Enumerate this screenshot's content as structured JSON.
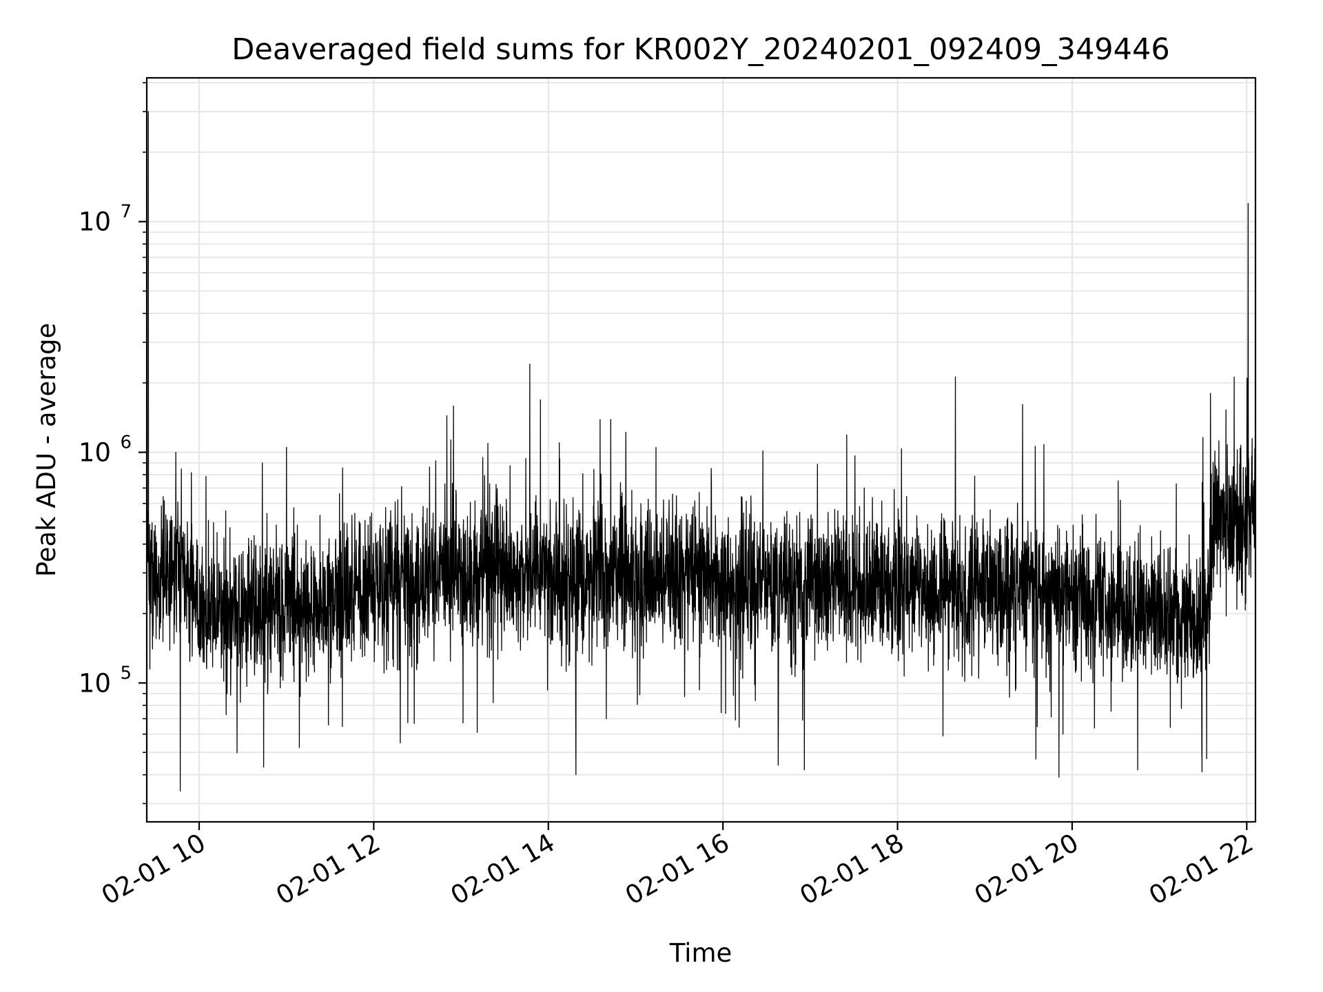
{
  "chart_data": {
    "type": "line",
    "title": "Deaveraged field sums for KR002Y_20240201_092409_349446",
    "xlabel": "Time",
    "ylabel": "Peak ADU - average",
    "yscale": "log",
    "grid": true,
    "line_color": "#000000",
    "grid_color": "#e6e6e6",
    "x_range": [
      "2024-02-01 09:24",
      "2024-02-01 22:06"
    ],
    "ylim": [
      25000,
      42000000
    ],
    "x_ticks": [
      {
        "value": "2024-02-01 10:00",
        "label": "02-01 10"
      },
      {
        "value": "2024-02-01 12:00",
        "label": "02-01 12"
      },
      {
        "value": "2024-02-01 14:00",
        "label": "02-01 14"
      },
      {
        "value": "2024-02-01 16:00",
        "label": "02-01 16"
      },
      {
        "value": "2024-02-01 18:00",
        "label": "02-01 18"
      },
      {
        "value": "2024-02-01 20:00",
        "label": "02-01 20"
      },
      {
        "value": "2024-02-01 22:00",
        "label": "02-01 22"
      }
    ],
    "y_ticks": [
      {
        "value": 100000,
        "base": "10",
        "exponent": "5"
      },
      {
        "value": 1000000,
        "base": "10",
        "exponent": "6"
      },
      {
        "value": 10000000,
        "base": "10",
        "exponent": "7"
      }
    ],
    "series": [
      {
        "n_points": 5000,
        "typical_level": [
          {
            "x": "2024-02-01 09:24",
            "y": 300000
          },
          {
            "x": "2024-02-01 09:50",
            "y": 300000
          },
          {
            "x": "2024-02-01 10:00",
            "y": 200000
          },
          {
            "x": "2024-02-01 11:00",
            "y": 220000
          },
          {
            "x": "2024-02-01 12:00",
            "y": 260000
          },
          {
            "x": "2024-02-01 13:00",
            "y": 300000
          },
          {
            "x": "2024-02-01 14:00",
            "y": 290000
          },
          {
            "x": "2024-02-01 15:00",
            "y": 300000
          },
          {
            "x": "2024-02-01 16:00",
            "y": 280000
          },
          {
            "x": "2024-02-01 17:00",
            "y": 270000
          },
          {
            "x": "2024-02-01 18:00",
            "y": 260000
          },
          {
            "x": "2024-02-01 19:00",
            "y": 260000
          },
          {
            "x": "2024-02-01 20:00",
            "y": 240000
          },
          {
            "x": "2024-02-01 21:00",
            "y": 200000
          },
          {
            "x": "2024-02-01 21:34",
            "y": 190000
          },
          {
            "x": "2024-02-01 21:36",
            "y": 500000
          },
          {
            "x": "2024-02-01 22:06",
            "y": 550000
          }
        ],
        "spread_decades": 0.28,
        "peaks": [
          {
            "x": "2024-02-01 09:25",
            "y": 30000000
          },
          {
            "x": "2024-02-01 09:44",
            "y": 1000000
          },
          {
            "x": "2024-02-01 11:00",
            "y": 1050000
          },
          {
            "x": "2024-02-01 13:15",
            "y": 950000
          },
          {
            "x": "2024-02-01 15:14",
            "y": 1050000
          },
          {
            "x": "2024-02-01 21:35",
            "y": 1800000
          },
          {
            "x": "2024-02-01 22:01",
            "y": 12000000
          }
        ],
        "dips": [
          {
            "x": "2024-02-01 09:47",
            "y": 34000
          },
          {
            "x": "2024-02-01 14:19",
            "y": 40000
          },
          {
            "x": "2024-02-01 16:38",
            "y": 44000
          },
          {
            "x": "2024-02-01 16:56",
            "y": 42000
          },
          {
            "x": "2024-02-01 20:45",
            "y": 42000
          }
        ]
      }
    ]
  }
}
